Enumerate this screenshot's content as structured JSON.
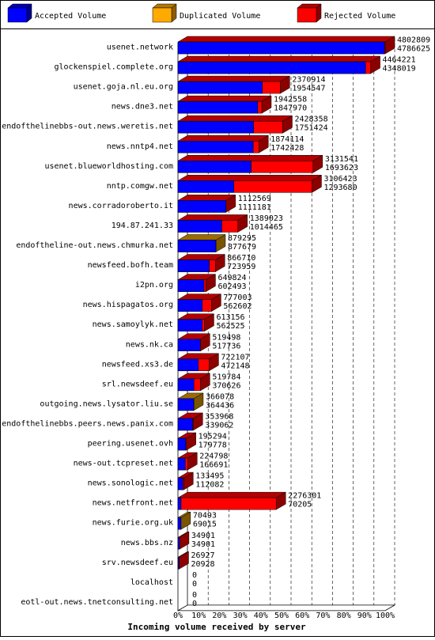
{
  "chart_data": {
    "type": "bar",
    "xlabel": "Incoming volume received by server",
    "xticks": [
      "0%",
      "10%",
      "20%",
      "30%",
      "40%",
      "50%",
      "60%",
      "70%",
      "80%",
      "90%",
      "100%"
    ],
    "legend": [
      {
        "name": "Accepted Volume",
        "color": "#0000ff"
      },
      {
        "name": "Duplicated Volume",
        "color": "#ffaa00"
      },
      {
        "name": "Rejected Volume",
        "color": "#ff0000"
      }
    ],
    "categories": [
      "usenet.network",
      "glockenspiel.complete.org",
      "usenet.goja.nl.eu.org",
      "news.dne3.net",
      "endofthelinebbs-out.news.weretis.net",
      "news.nntp4.net",
      "usenet.blueworldhosting.com",
      "nntp.comgw.net",
      "news.corradoroberto.it",
      "194.87.241.33",
      "endoftheline-out.news.chmurka.net",
      "newsfeed.bofh.team",
      "i2pn.org",
      "news.hispagatos.org",
      "news.samoylyk.net",
      "news.nk.ca",
      "newsfeed.xs3.de",
      "srl.newsdeef.eu",
      "outgoing.news.lysator.liu.se",
      "endofthelinebbs.peers.news.panix.com",
      "peering.usenet.ovh",
      "news-out.tcpreset.net",
      "news.sonologic.net",
      "news.netfront.net",
      "news.furie.org.uk",
      "news.bbs.nz",
      "srv.newsdeef.eu",
      "localhost",
      "eotl-out.news.tnetconsulting.net"
    ],
    "total": [
      4802809,
      4464221,
      2370914,
      1942558,
      2428358,
      1874114,
      3131541,
      3106423,
      1112569,
      1389023,
      879295,
      866710,
      649824,
      777003,
      613156,
      519498,
      722107,
      519784,
      366078,
      353968,
      195294,
      224798,
      133495,
      2276301,
      70493,
      34901,
      26927,
      0,
      0
    ],
    "accepted": [
      4786625,
      4348019,
      1954547,
      1847970,
      1751424,
      1742428,
      1693623,
      1293680,
      1111181,
      1014465,
      877679,
      723959,
      602493,
      562602,
      562525,
      517736,
      472148,
      370626,
      364436,
      339062,
      179778,
      166691,
      112082,
      70205,
      69015,
      34901,
      20928,
      0,
      0
    ],
    "duplicated_flag": [
      false,
      false,
      false,
      false,
      false,
      false,
      false,
      false,
      false,
      false,
      true,
      false,
      false,
      false,
      false,
      false,
      false,
      false,
      true,
      false,
      false,
      false,
      false,
      false,
      true,
      false,
      false,
      false,
      false
    ],
    "max": 4802809
  }
}
